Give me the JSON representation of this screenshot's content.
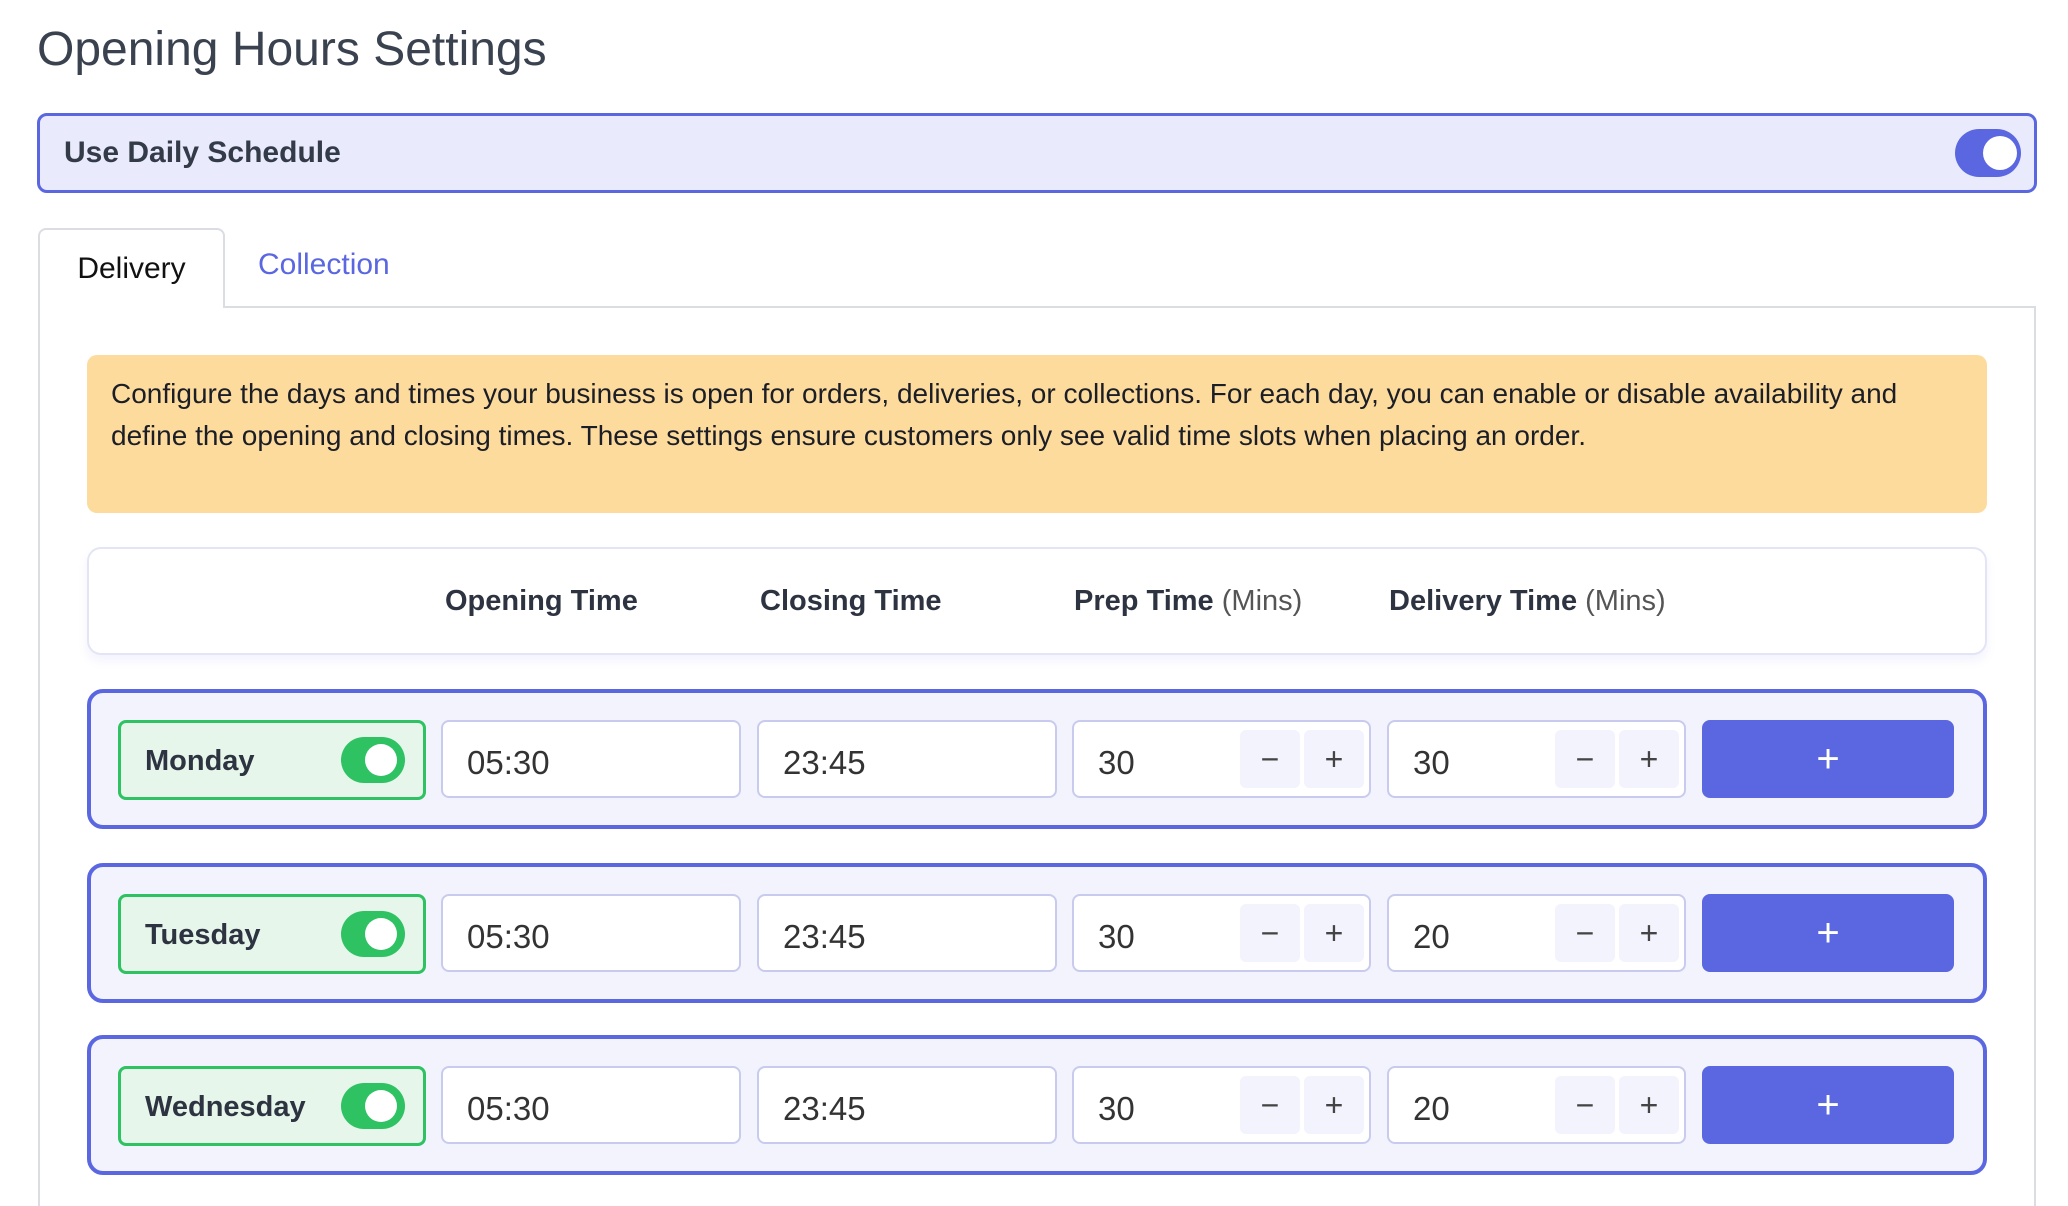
{
  "title": "Opening Hours Settings",
  "daily_schedule": {
    "label": "Use Daily Schedule",
    "enabled": true
  },
  "tabs": [
    {
      "label": "Delivery",
      "active": true
    },
    {
      "label": "Collection",
      "active": false
    }
  ],
  "info": "Configure the days and times your business is open for orders, deliveries, or collections. For each day, you can enable or disable availability and define the opening and closing times. These settings ensure customers only see valid time slots when placing an order.",
  "columns": {
    "opening": "Opening Time",
    "closing": "Closing Time",
    "prep": "Prep Time",
    "prep_unit": "(Mins)",
    "delivery": "Delivery Time",
    "delivery_unit": "(Mins)"
  },
  "stepper": {
    "minus": "−",
    "plus": "+"
  },
  "add_label": "+",
  "days": [
    {
      "name": "Monday",
      "enabled": true,
      "opening": "05:30",
      "closing": "23:45",
      "prep": "30",
      "delivery": "30"
    },
    {
      "name": "Tuesday",
      "enabled": true,
      "opening": "05:30",
      "closing": "23:45",
      "prep": "30",
      "delivery": "20"
    },
    {
      "name": "Wednesday",
      "enabled": true,
      "opening": "05:30",
      "closing": "23:45",
      "prep": "30",
      "delivery": "20"
    }
  ],
  "colors": {
    "accent": "#5a67e0",
    "success": "#2ec263",
    "info_bg": "#fddb9c"
  }
}
